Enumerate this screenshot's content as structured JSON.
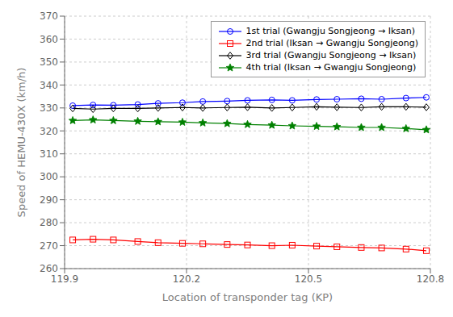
{
  "chart_data": {
    "type": "line",
    "title": "",
    "xlabel": "Location of transponder tag (KP)",
    "ylabel": "Speed of HEMU-430X (km/h)",
    "xlim": [
      119.9,
      120.8
    ],
    "ylim": [
      260,
      370
    ],
    "xticks": [
      119.9,
      120.2,
      120.5,
      120.8
    ],
    "yticks": [
      260,
      270,
      280,
      290,
      300,
      310,
      320,
      330,
      340,
      350,
      360,
      370
    ],
    "grid": true,
    "legend": "upper right",
    "x": [
      119.92,
      119.97,
      120.02,
      120.08,
      120.13,
      120.19,
      120.24,
      120.3,
      120.35,
      120.41,
      120.46,
      120.52,
      120.57,
      120.63,
      120.68,
      120.74,
      120.79
    ],
    "series": [
      {
        "name": "1st trial (Gwangju Songjeong → Iksan)",
        "color": "#0000ff",
        "marker": "circle",
        "values": [
          331.0,
          331.3,
          331.2,
          331.5,
          332.0,
          332.3,
          332.8,
          333.0,
          333.3,
          333.5,
          333.3,
          333.7,
          333.8,
          334.0,
          333.8,
          334.3,
          334.6
        ]
      },
      {
        "name": "2nd trial (Iksan → Gwangju Songjeong)",
        "color": "#ff0000",
        "marker": "square",
        "values": [
          272.5,
          272.8,
          272.5,
          271.8,
          271.3,
          271.0,
          270.8,
          270.5,
          270.3,
          270.0,
          270.2,
          269.8,
          269.5,
          269.2,
          269.0,
          268.5,
          267.8
        ]
      },
      {
        "name": "3rd trial (Gwangju Songjeong → Iksan)",
        "color": "#000000",
        "marker": "diamond",
        "values": [
          329.8,
          329.5,
          329.8,
          329.8,
          330.0,
          330.2,
          330.0,
          330.2,
          330.3,
          330.0,
          330.2,
          330.5,
          330.3,
          330.2,
          330.5,
          330.5,
          330.3
        ]
      },
      {
        "name": "4th trial (Iksan → Gwangju Songjeong)",
        "color": "#008000",
        "marker": "star",
        "values": [
          324.5,
          324.8,
          324.5,
          324.2,
          324.0,
          323.8,
          323.5,
          323.2,
          322.8,
          322.5,
          322.2,
          322.0,
          321.8,
          321.5,
          321.5,
          321.0,
          320.5
        ]
      }
    ]
  }
}
